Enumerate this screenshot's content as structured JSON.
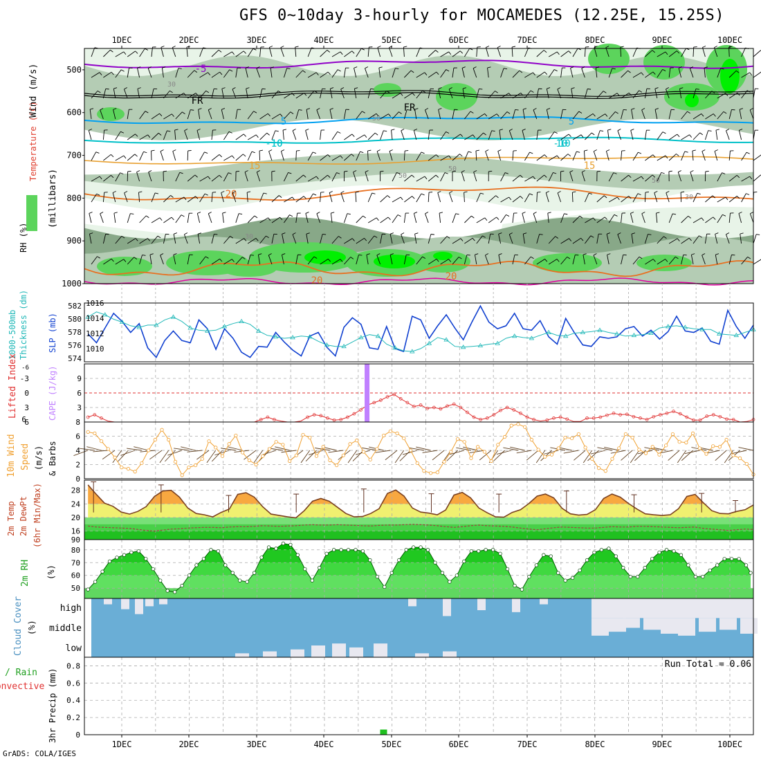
{
  "title": "GFS 0~10day 3-hourly for MOCAMEDES (12.25E, 15.25S)",
  "footer": "GrADS: COLA/IGES",
  "date_labels": [
    "1DEC",
    "2DEC",
    "3DEC",
    "4DEC",
    "5DEC",
    "6DEC",
    "7DEC",
    "8DEC",
    "9DEC",
    "10DEC"
  ],
  "colors": {
    "rh_light": "#e8f4e8",
    "rh_mid": "#b4ccb4",
    "rh_dark": "#88a888",
    "rh_green": "#5cd45c",
    "rh_bright": "#00f000",
    "isotherm_purple": "#9000c8",
    "isotherm_blue": "#00a0f0",
    "isotherm_cyan": "#00c0c8",
    "isotherm_orange": "#e8a030",
    "isotherm_dkorange": "#e87020",
    "isotherm_magenta": "#e000a0",
    "slp": "#1040d0",
    "thickness": "#20b8b8",
    "cape": "#c080ff",
    "lifted": "#e03030",
    "wind": "#f0a030",
    "barb": "#604020",
    "temp_warm": "#f8a840",
    "temp_yellow": "#f0f070",
    "dew_green": "#20c020",
    "rh2m": "#00b000",
    "cloud_blue": "#6aaed6",
    "cloud_white": "#e8e8f0",
    "precip": "#20c020"
  },
  "panels": {
    "upper": {
      "ylabels": [
        "Wind (m/s)",
        "Temperature (°C)",
        "RH (%)",
        "(millibars)"
      ],
      "yticks": [
        "500",
        "600",
        "700",
        "800",
        "900",
        "1000"
      ],
      "contour_labels": [
        "5",
        "5",
        "FR",
        "FR",
        "-5",
        "-10",
        "-10",
        "10",
        "10",
        "15",
        "15",
        "20",
        "20",
        "20",
        "30",
        "30",
        "30",
        "50",
        "50",
        "50",
        "50"
      ]
    },
    "pressure": {
      "ylabels": [
        "1000-500mb",
        "Thickness (dm)",
        "SLP (mb)"
      ],
      "left_ticks": [
        "582",
        "580",
        "578",
        "576",
        "574"
      ],
      "right_ticks": [
        "1016",
        "1014",
        "1012",
        "1010"
      ]
    },
    "stability": {
      "ylabels": [
        "Lifted Index",
        "CAPE (J/kg)"
      ],
      "left_ticks": [
        "-3",
        "0",
        "3",
        "6"
      ],
      "right_ticks": [
        "9",
        "6",
        "3"
      ]
    },
    "wind10": {
      "ylabels": [
        "10m Wind",
        "Speed",
        "(m/s)",
        "& Barbs"
      ],
      "yticks": [
        "8",
        "6",
        "4",
        "2",
        "0"
      ]
    },
    "temp2m": {
      "ylabels": [
        "2m Temp",
        "2m DewPt",
        "(6hr Min/Max)"
      ],
      "yticks": [
        "28",
        "24",
        "20",
        "16",
        "90"
      ]
    },
    "rh2m": {
      "ylabels": [
        "2m RH",
        "(%)"
      ],
      "yticks": [
        "80",
        "70",
        "60",
        "50"
      ]
    },
    "cloud": {
      "ylabels": [
        "Cloud Cover",
        "(%)"
      ],
      "levels": [
        "high",
        "middle",
        "low"
      ]
    },
    "precip": {
      "ylabels": [
        "3hr Precip (mm)",
        "Total / Rain",
        "Convective"
      ],
      "yticks": [
        "0.8",
        "0.6",
        "0.4",
        "0.2",
        "0"
      ],
      "run_total": "Run Total = 0.06"
    }
  },
  "chart_data": [
    {
      "type": "line",
      "title": "1000-500mb Thickness / SLP",
      "x": [
        "11-30 12Z",
        "11-30 15Z",
        "11-30 18Z",
        "11-30 21Z",
        "12-01 00Z",
        "12-01 03Z",
        "12-01 06Z",
        "12-01 09Z",
        "12-01 12Z",
        "12-01 15Z",
        "12-01 18Z",
        "12-01 21Z",
        "12-02 00Z",
        "12-02 03Z",
        "12-02 06Z",
        "12-02 09Z",
        "12-02 12Z",
        "12-02 15Z",
        "12-02 18Z",
        "12-02 21Z",
        "12-03 00Z",
        "12-03 03Z",
        "12-03 06Z",
        "12-03 09Z",
        "12-03 12Z",
        "12-03 15Z",
        "12-03 18Z",
        "12-03 21Z",
        "12-04 00Z",
        "12-04 03Z",
        "12-04 06Z",
        "12-04 09Z",
        "12-04 12Z",
        "12-04 15Z",
        "12-04 18Z",
        "12-04 21Z",
        "12-05 00Z",
        "12-05 03Z",
        "12-05 06Z",
        "12-05 09Z",
        "12-05 12Z",
        "12-05 15Z",
        "12-05 18Z",
        "12-05 21Z",
        "12-06 00Z",
        "12-06 03Z",
        "12-06 06Z",
        "12-06 09Z",
        "12-06 12Z",
        "12-06 15Z",
        "12-06 18Z",
        "12-06 21Z",
        "12-07 00Z",
        "12-07 03Z",
        "12-07 06Z",
        "12-07 09Z",
        "12-07 12Z",
        "12-07 15Z",
        "12-07 18Z",
        "12-07 21Z",
        "12-08 00Z",
        "12-08 03Z",
        "12-08 06Z",
        "12-08 09Z",
        "12-08 12Z",
        "12-08 15Z",
        "12-08 18Z",
        "12-08 21Z",
        "12-09 00Z",
        "12-09 03Z",
        "12-09 06Z",
        "12-09 09Z",
        "12-09 12Z",
        "12-09 15Z",
        "12-09 18Z",
        "12-09 21Z",
        "12-10 00Z",
        "12-10 03Z",
        "12-10 06Z"
      ],
      "series": [
        {
          "name": "SLP",
          "axis": "right",
          "values": [
            1011.8,
            1010.6,
            1012.6,
            1014.6,
            1013.5,
            1012.0,
            1013.2,
            1009.9,
            1008.6,
            1010.9,
            1012.2,
            1010.9,
            1010.6,
            1013.7,
            1012.5,
            1009.7,
            1012.5,
            1011.2,
            1009.3,
            1008.6,
            1010.1,
            1010.0,
            1012.0,
            1010.7,
            1009.6,
            1008.8,
            1011.5,
            1012.0,
            1010.0,
            1008.8,
            1012.7,
            1014.0,
            1013.1,
            1009.9,
            1009.7,
            1012.8,
            1009.8,
            1009.4,
            1014.2,
            1013.7,
            1011.2,
            1012.9,
            1014.4,
            1012.6,
            1011.0,
            1013.4,
            1015.6,
            1013.4,
            1012.5,
            1012.9,
            1014.6,
            1012.5,
            1012.3,
            1013.6,
            1011.4,
            1010.4,
            1013.9,
            1012.0,
            1010.3,
            1010.1,
            1011.4,
            1011.2,
            1011.4,
            1012.5,
            1012.8,
            1011.5,
            1012.3,
            1011.1,
            1012.1,
            1014.2,
            1012.2,
            1012.0,
            1012.6,
            1010.8,
            1010.4,
            1015.0,
            1012.8,
            1011.2,
            1013.0
          ]
        },
        {
          "name": "1000-500mb Thickness",
          "axis": "left",
          "values": [
            580.1,
            580.8,
            580.4,
            579.8,
            579.4,
            578.9,
            578.7,
            579.0,
            579.0,
            579.7,
            580.1,
            579.5,
            578.6,
            578.3,
            578.2,
            578.3,
            578.8,
            579.2,
            579.5,
            579.1,
            578.2,
            577.6,
            577.4,
            577.2,
            577.3,
            577.5,
            577.4,
            576.8,
            576.3,
            576.1,
            576.1,
            576.7,
            577.3,
            577.7,
            577.5,
            576.4,
            575.9,
            575.5,
            575.4,
            575.8,
            576.5,
            577.3,
            577.0,
            576.1,
            576.0,
            576.1,
            576.2,
            576.4,
            576.5,
            577.2,
            577.5,
            577.3,
            577.2,
            577.6,
            578.0,
            577.6,
            577.5,
            577.9,
            578.0,
            578.1,
            578.3,
            578.0,
            577.8,
            577.5,
            577.6,
            577.7,
            577.9,
            578.6,
            578.8,
            578.9,
            578.7,
            578.5,
            578.4,
            578.4,
            577.8,
            577.7,
            577.6,
            578.0,
            578.4
          ]
        }
      ],
      "ylim_left": [
        574,
        582
      ],
      "ylim_right": [
        1008,
        1016
      ]
    },
    {
      "type": "line",
      "title": "Lifted Index / CAPE",
      "series": [
        {
          "name": "Lifted Index",
          "values": [
            5.0,
            4.5,
            5.2,
            5.8,
            6.0,
            6.0,
            6.0,
            6.0,
            6.0,
            6.0,
            6.0,
            6.0,
            6.0,
            6.0,
            6.0,
            6.0,
            6.0,
            6.0,
            6.0,
            6.0,
            6.0,
            6.0,
            6.0,
            6.0,
            6.0,
            6.0,
            5.5,
            5.0,
            5.5,
            5.8,
            6.0,
            6.0,
            5.8,
            5.0,
            4.5,
            4.7,
            5.2,
            5.6,
            5.5,
            5.0,
            4.3,
            3.5,
            2.5,
            2.0,
            1.5,
            0.8,
            0.3,
            1.2,
            2.0,
            2.8,
            2.5,
            3.2,
            3.0,
            3.3,
            2.7,
            2.3,
            3.0,
            4.0,
            5.0,
            5.5,
            5.2,
            4.5,
            3.6,
            3.0,
            3.5,
            4.2,
            5.0,
            5.5,
            5.8,
            5.6,
            5.2,
            5.0,
            5.4,
            5.9,
            5.9,
            5.2,
            5.2,
            5.0,
            4.6,
            4.2,
            4.5,
            4.4,
            4.9,
            5.2,
            5.5,
            4.9,
            4.5,
            4.2,
            3.8,
            4.3,
            5.0,
            5.6,
            5.6,
            4.8,
            4.5,
            4.9,
            5.4,
            5.5,
            6.0,
            5.9,
            5.5
          ]
        },
        {
          "name": "CAPE",
          "values": [
            {
              "x": "12-04 15Z",
              "value": 12
            }
          ]
        }
      ],
      "lifted_ylim": [
        6,
        -6
      ],
      "cape_ylim": [
        0,
        12
      ]
    },
    {
      "type": "line",
      "title": "10m Wind Speed & Barbs",
      "series": [
        {
          "name": "10m Wind Speed",
          "values": [
            6.6,
            6.4,
            5.3,
            4.2,
            3.0,
            1.6,
            1.4,
            1.0,
            2.2,
            4.0,
            5.5,
            6.9,
            5.5,
            2.4,
            0.5,
            1.6,
            1.9,
            2.8,
            5.3,
            4.4,
            3.2,
            4.9,
            6.1,
            3.7,
            2.6,
            2.0,
            3.2,
            4.2,
            5.2,
            4.8,
            2.5,
            3.3,
            6.2,
            5.8,
            3.2,
            4.5,
            2.6,
            1.9,
            3.3,
            4.9,
            5.4,
            3.8,
            2.7,
            4.2,
            6.1,
            6.7,
            6.4,
            5.7,
            4.0,
            2.2,
            1.1,
            0.8,
            0.9,
            2.4,
            3.8,
            5.6,
            5.2,
            2.9,
            4.5,
            3.8,
            2.5,
            4.8,
            5.9,
            7.5,
            7.7,
            7.3,
            5.5,
            4.1,
            3.1,
            3.4,
            4.3,
            5.8,
            5.7,
            6.3,
            4.4,
            2.8,
            1.5,
            1.1,
            2.8,
            4.3,
            6.3,
            5.8,
            4.1,
            3.6,
            4.5,
            3.4,
            4.7,
            6.3,
            5.2,
            5.1,
            6.4,
            4.3,
            3.5,
            4.6,
            4.5,
            5.5,
            3.3,
            2.9,
            2.1,
            0.6
          ]
        }
      ],
      "ylim": [
        0,
        8
      ]
    },
    {
      "type": "line",
      "title": "2m Temp / 2m DewPt (6hr Min/Max)",
      "series": [
        {
          "name": "2m Temp",
          "values": [
            29.6,
            26.8,
            24.2,
            23.3,
            21.6,
            21.0,
            21.8,
            23.2,
            26.2,
            27.8,
            28.0,
            26.0,
            22.8,
            21.2,
            20.8,
            20.2,
            21.5,
            22.5,
            26.8,
            27.3,
            26.0,
            23.2,
            21.0,
            20.6,
            20.2,
            19.9,
            22.0,
            24.8,
            25.6,
            24.8,
            23.0,
            21.2,
            20.2,
            20.3,
            21.2,
            22.6,
            27.1,
            28.1,
            26.3,
            22.8,
            21.6,
            21.3,
            20.8,
            22.2,
            26.6,
            27.4,
            25.8,
            22.8,
            21.4,
            20.2,
            20.1,
            21.5,
            22.3,
            24.1,
            26.3,
            26.9,
            25.8,
            22.7,
            21.1,
            20.7,
            20.9,
            22.3,
            25.6,
            26.9,
            26.0,
            24.1,
            22.5,
            21.1,
            20.8,
            20.6,
            20.8,
            22.6,
            26.2,
            26.8,
            24.3,
            22.0,
            21.2,
            21.1,
            21.8,
            22.3,
            23.7
          ]
        },
        {
          "name": "2m DewPt",
          "values": [
            17.5,
            17.2,
            17.1,
            17.0,
            16.9,
            16.8,
            16.5,
            16.2,
            16.0,
            16.3,
            16.6,
            16.7,
            16.9,
            17.0,
            17.1,
            17.1,
            17.0,
            17.2,
            17.3,
            17.3,
            17.4,
            17.6,
            17.5,
            17.4,
            17.5,
            17.6,
            17.8,
            17.9,
            17.8,
            17.8,
            17.9,
            17.8,
            17.7,
            17.6,
            17.5,
            17.7,
            17.8,
            17.8,
            17.9,
            18.0,
            17.9,
            17.8,
            17.6,
            17.3,
            17.1,
            17.3,
            17.6,
            17.8,
            17.6,
            17.5,
            17.4,
            17.2,
            16.9,
            16.6,
            16.4,
            16.7,
            17.0,
            17.2,
            17.1,
            17.0,
            16.9,
            16.9,
            17.1,
            17.3,
            17.2,
            17.2,
            17.4,
            17.4,
            17.3,
            17.2,
            17.1,
            17.0,
            17.1,
            17.2,
            16.8,
            16.6,
            16.4,
            16.2,
            16.4,
            16.6,
            16.5
          ]
        }
      ],
      "yticks": [
        16,
        20,
        24,
        28
      ]
    },
    {
      "type": "area",
      "title": "2m RH",
      "series": [
        {
          "name": "2m RH",
          "values": [
            49,
            55,
            63,
            71,
            74,
            76,
            78,
            79,
            73,
            65,
            56,
            48,
            47,
            52,
            60,
            68,
            73,
            80,
            79,
            68,
            62,
            56,
            55,
            62,
            74,
            82,
            81,
            85,
            84,
            76,
            65,
            56,
            66,
            77,
            80,
            80,
            80,
            80,
            79,
            72,
            59,
            51,
            62,
            72,
            80,
            82,
            82,
            80,
            70,
            62,
            55,
            60,
            71,
            79,
            79,
            80,
            80,
            77,
            65,
            52,
            49,
            59,
            68,
            76,
            75,
            62,
            56,
            58,
            64,
            72,
            78,
            80,
            81,
            75,
            66,
            59,
            59,
            66,
            73,
            78,
            80,
            79,
            76,
            68,
            59,
            59,
            64,
            68,
            73,
            73,
            73,
            68,
            62
          ]
        }
      ],
      "ylim": [
        45,
        88
      ]
    },
    {
      "type": "bar",
      "title": "3hr Precip",
      "series": [
        {
          "name": "3hr Precip",
          "values": [
            {
              "x": "12-04 21Z",
              "value": 0.06
            }
          ]
        }
      ],
      "ylim": [
        0,
        0.9
      ],
      "annotation": "Run Total = 0.06"
    }
  ]
}
